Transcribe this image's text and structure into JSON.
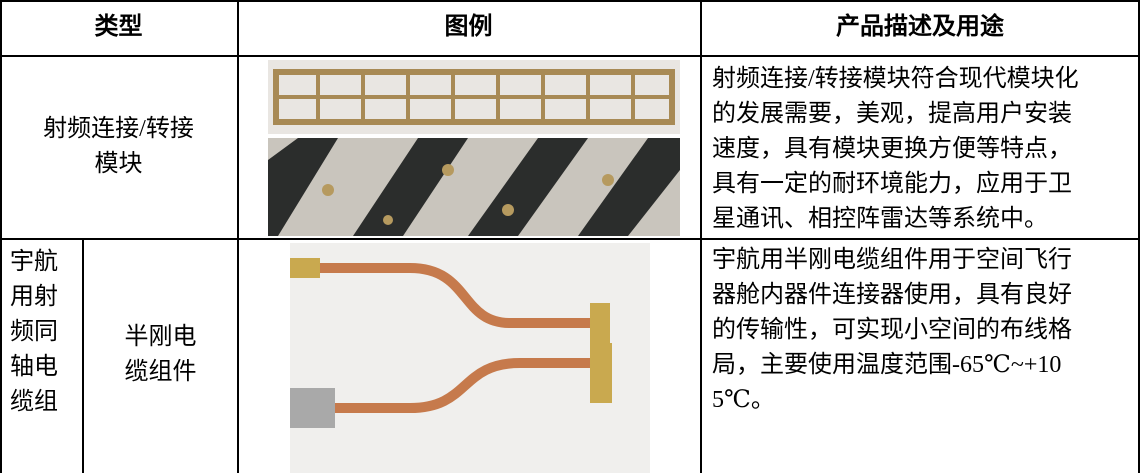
{
  "table": {
    "headers": [
      "类型",
      "图例",
      "产品描述及用途"
    ],
    "rows": [
      {
        "type": [
          "射频连接/转接",
          "模块"
        ],
        "description": [
          "射频连接/转接模块符合现代模块化",
          "的发展需要，美观，提高用户安装",
          "速度，具有模块更换方便等特点，",
          "具有一定的耐环境能力，应用于卫",
          "星通讯、相控阵雷达等系统中。"
        ]
      },
      {
        "category": [
          "宇航",
          "用射",
          "频同",
          "轴电",
          "缆组"
        ],
        "type": [
          "半刚电",
          "缆组件"
        ],
        "description": [
          "宇航用半刚电缆组件用于空间飞行",
          "器舱内器件连接器使用，具有良好",
          "的传输性，可实现小空间的布线格",
          "局，主要使用温度范围-65℃~+10",
          "5℃。"
        ]
      }
    ]
  }
}
